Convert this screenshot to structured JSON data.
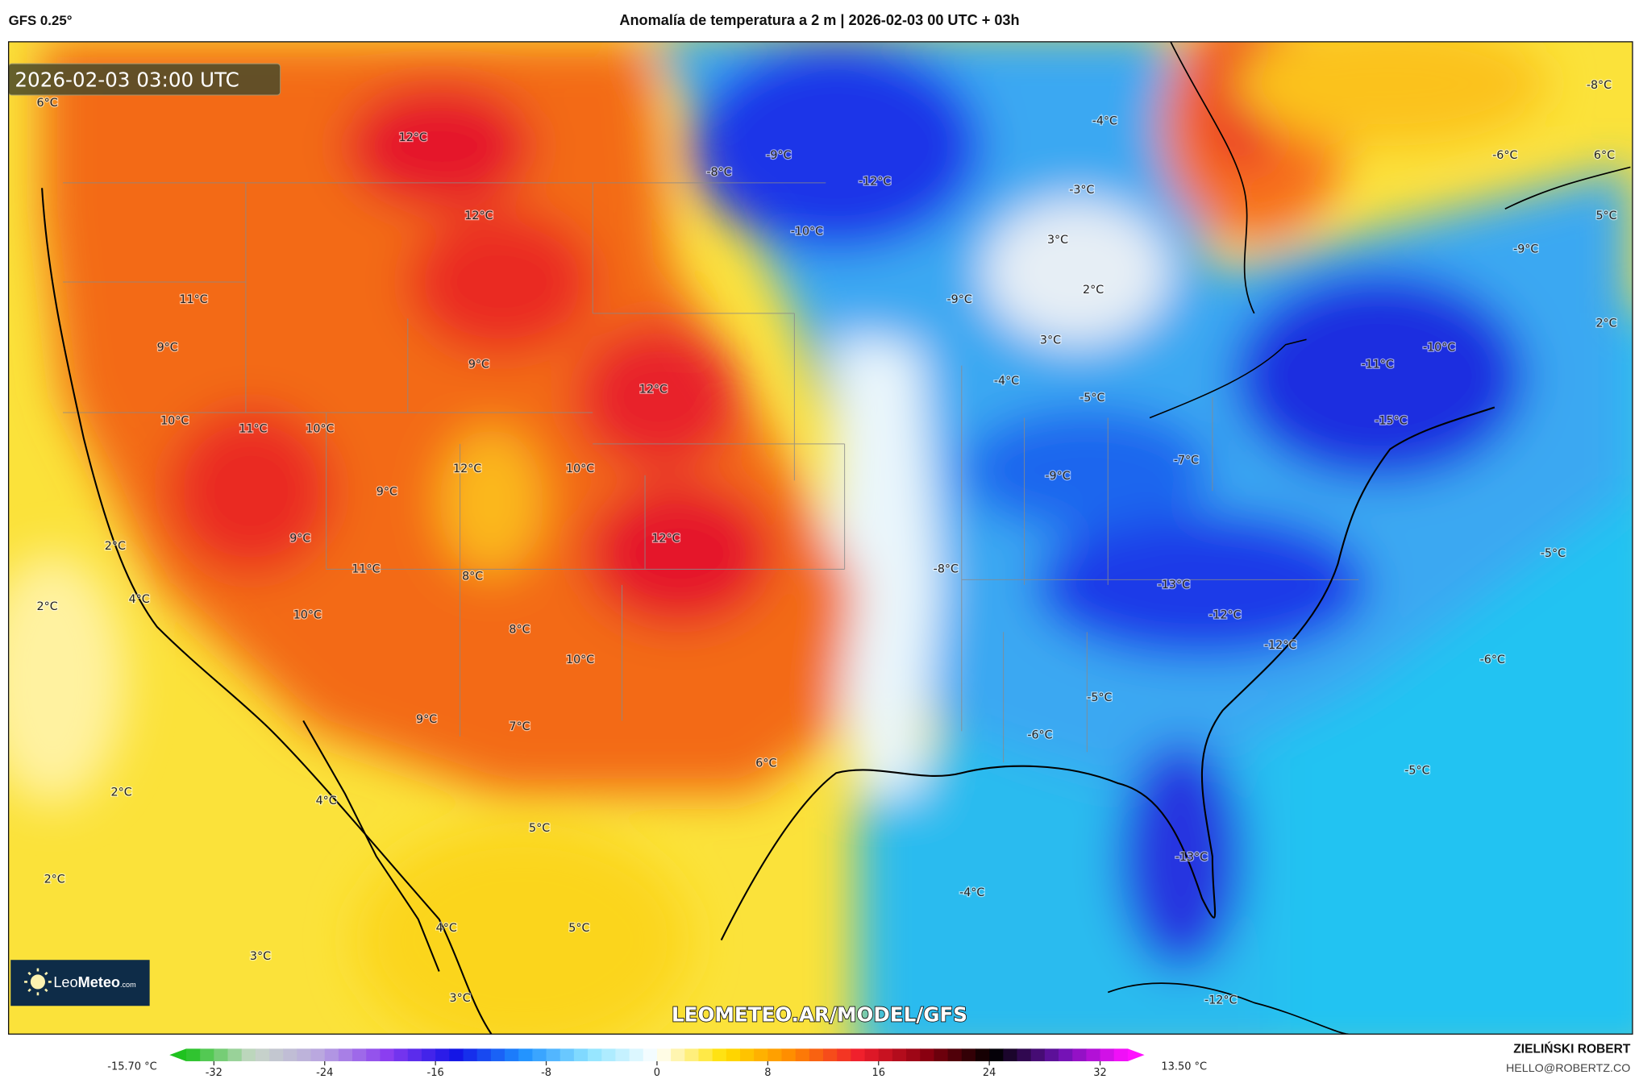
{
  "header": {
    "model": "GFS 0.25°",
    "title": "Anomalía de temperatura a 2 m | 2026-02-03 00 UTC + 03h"
  },
  "map": {
    "valid_time": "2026-02-03 03:00 UTC",
    "watermark": "LEOMETEO.AR/MODEL/GFS",
    "logo": {
      "prefix": "Leo",
      "brand": "Meteo",
      "suffix": ".com"
    },
    "labels": [
      "6°C",
      "12°C",
      "12°C",
      "-8°C",
      "-9°C",
      "-12°C",
      "-10°C",
      "-4°C",
      "-3°C",
      "3°C",
      "2°C",
      "-9°C",
      "3°C",
      "-4°C",
      "-5°C",
      "-8°C",
      "-6°C",
      "6°C",
      "5°C",
      "-9°C",
      "2°C",
      "-10°C",
      "-11°C",
      "-15°C",
      "-7°C",
      "-9°C",
      "11°C",
      "9°C",
      "9°C",
      "12°C",
      "10°C",
      "11°C",
      "10°C",
      "12°C",
      "10°C",
      "9°C",
      "9°C",
      "12°C",
      "2°C",
      "11°C",
      "8°C",
      "-8°C",
      "-5°C",
      "4°C",
      "2°C",
      "10°C",
      "-13°C",
      "-12°C",
      "-12°C",
      "8°C",
      "10°C",
      "-6°C",
      "-5°C",
      "9°C",
      "7°C",
      "6°C",
      "-6°C",
      "-5°C",
      "2°C",
      "4°C",
      "5°C",
      "-13°C",
      "2°C",
      "-4°C",
      "4°C",
      "5°C",
      "3°C",
      "3°C",
      "-12°C"
    ]
  },
  "colorbar": {
    "min_label": "-15.70 °C",
    "max_label": "13.50 °C",
    "ticks": [
      "-32",
      "-24",
      "-16",
      "-8",
      "0",
      "8",
      "16",
      "24",
      "32"
    ],
    "tick_values": [
      -32,
      -24,
      -16,
      -8,
      0,
      8,
      16,
      24,
      32
    ],
    "colors": [
      "#1fc21f",
      "#c8d8c8",
      "#b9a6e0",
      "#8a3cf0",
      "#1414e6",
      "#1e90ff",
      "#8fe4ff",
      "#ffffff",
      "#ffe000",
      "#ff8a00",
      "#f01e2d",
      "#8b0010",
      "#000000",
      "#6a12b0",
      "#ff10ff"
    ]
  },
  "credit": {
    "author": "ZIELIŃSKI ROBERT",
    "email": "HELLO@ROBERTZ.CO"
  }
}
